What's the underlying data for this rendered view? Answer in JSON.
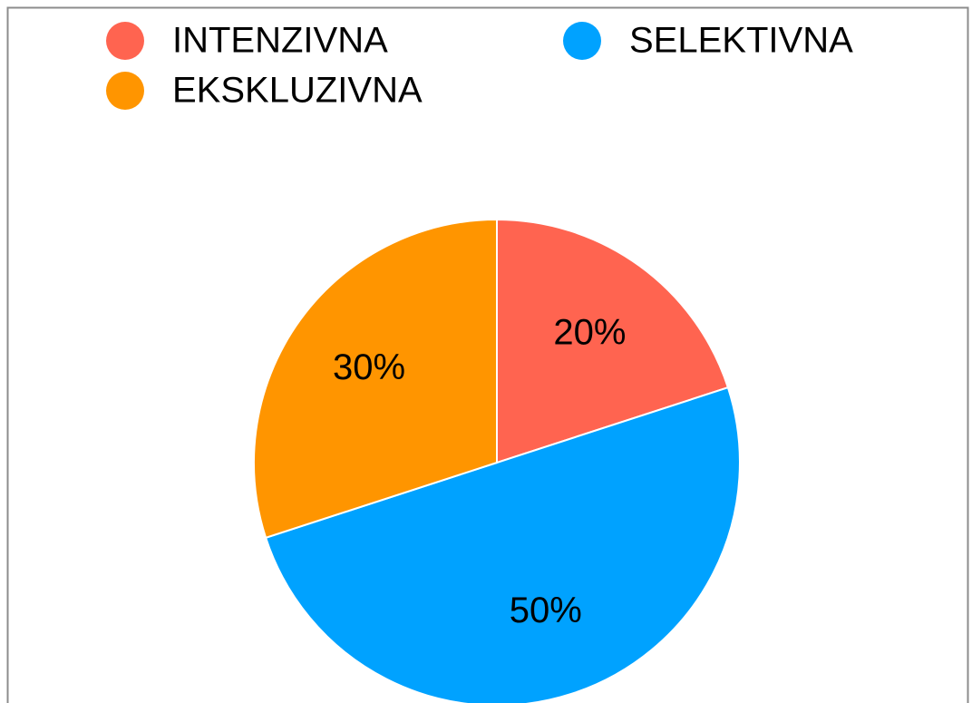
{
  "chart_data": {
    "type": "pie",
    "categories": [
      "INTENZIVNA",
      "SELEKTIVNA",
      "EKSKLUZIVNA"
    ],
    "values": [
      20,
      50,
      30
    ],
    "value_labels": [
      "20%",
      "50%",
      "30%"
    ],
    "colors": [
      "#ff6450",
      "#00a2ff",
      "#ff9500"
    ],
    "legend": "top"
  }
}
